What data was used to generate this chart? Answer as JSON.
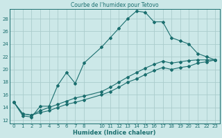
{
  "title": "Courbe de l'humidex pour Tetovo",
  "xlabel": "Humidex (Indice chaleur)",
  "background_color": "#cce8e8",
  "grid_color": "#aacccc",
  "line_color": "#1a6e6e",
  "xlim": [
    -0.5,
    23.5
  ],
  "ylim": [
    11.5,
    29.5
  ],
  "xticks": [
    0,
    1,
    2,
    3,
    4,
    5,
    6,
    7,
    8,
    10,
    11,
    12,
    13,
    14,
    15,
    16,
    17,
    18,
    19,
    20,
    21,
    22,
    23
  ],
  "yticks": [
    12,
    14,
    16,
    18,
    20,
    22,
    24,
    26,
    28
  ],
  "line1_x": [
    0,
    1,
    2,
    3,
    4,
    5,
    6,
    7,
    8,
    10,
    11,
    12,
    13,
    14,
    15,
    16,
    17,
    18,
    19,
    20,
    21,
    22,
    23
  ],
  "line1_y": [
    14.8,
    12.7,
    12.5,
    14.2,
    14.2,
    17.5,
    19.5,
    17.8,
    21.0,
    23.5,
    25.0,
    26.5,
    28.0,
    29.2,
    29.0,
    27.5,
    27.5,
    25.0,
    24.5,
    24.0,
    22.5,
    22.0,
    21.5
  ],
  "line2_x": [
    0,
    1,
    2,
    3,
    4,
    5,
    6,
    7,
    8,
    10,
    11,
    12,
    13,
    14,
    15,
    16,
    17,
    18,
    19,
    20,
    21,
    22,
    23
  ],
  "line2_y": [
    14.8,
    13.0,
    12.8,
    13.5,
    14.0,
    14.5,
    15.0,
    15.5,
    15.8,
    16.5,
    17.2,
    18.0,
    18.8,
    19.5,
    20.2,
    20.8,
    21.3,
    21.0,
    21.2,
    21.4,
    21.5,
    21.5,
    21.5
  ],
  "line3_x": [
    0,
    1,
    2,
    3,
    4,
    5,
    6,
    7,
    8,
    10,
    11,
    12,
    13,
    14,
    15,
    16,
    17,
    18,
    19,
    20,
    21,
    22,
    23
  ],
  "line3_y": [
    14.8,
    13.0,
    12.8,
    13.2,
    13.5,
    14.0,
    14.5,
    14.8,
    15.2,
    16.0,
    16.5,
    17.2,
    18.0,
    18.5,
    19.2,
    19.8,
    20.3,
    20.0,
    20.3,
    20.5,
    21.0,
    21.2,
    21.5
  ]
}
